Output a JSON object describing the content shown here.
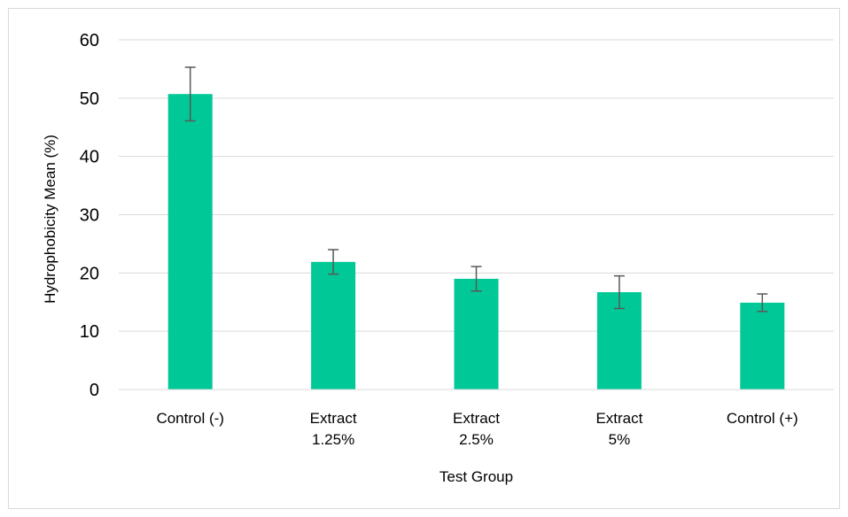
{
  "chart_data": {
    "type": "bar",
    "title": "",
    "xlabel": "Test Group",
    "ylabel": "Hydrophobicity Mean (%)",
    "ylim": [
      0,
      60
    ],
    "yticks": [
      0,
      10,
      20,
      30,
      40,
      50,
      60
    ],
    "grid": true,
    "categories": [
      {
        "lines": [
          "Control (-)"
        ]
      },
      {
        "lines": [
          "Extract",
          "1.25%"
        ]
      },
      {
        "lines": [
          "Extract",
          "2.5%"
        ]
      },
      {
        "lines": [
          "Extract",
          "5%"
        ]
      },
      {
        "lines": [
          "Control (+)"
        ]
      }
    ],
    "series": [
      {
        "values": [
          50.7,
          21.9,
          19.0,
          16.7,
          14.9
        ],
        "error": [
          4.6,
          2.1,
          2.1,
          2.8,
          1.5
        ],
        "color": "#00c896"
      }
    ],
    "colors": {
      "bar": "#00c896",
      "gridline": "#d9d9d9",
      "axis": "#d9d9d9",
      "errorbar": "#595959"
    }
  }
}
